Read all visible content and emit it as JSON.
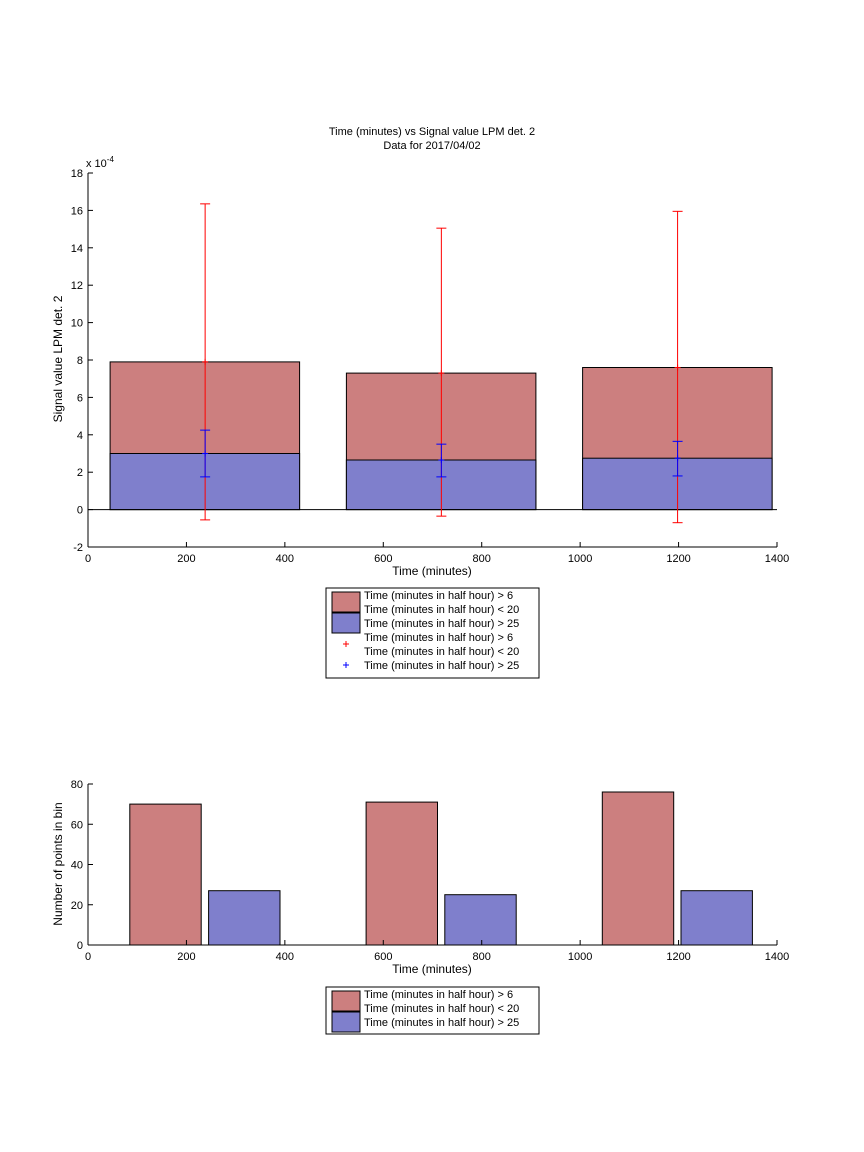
{
  "colors": {
    "red_fill": "#cc7f7f",
    "blue_fill": "#7f7fcc",
    "red_err": "#ff0000",
    "blue_err": "#0000ff"
  },
  "chart_data": [
    {
      "type": "bar",
      "title": "Time (minutes) vs Signal value LPM det. 2",
      "subtitle": "Data for 2017/04/02",
      "xlabel": "Time (minutes)",
      "ylabel": "Signal value LPM det. 2",
      "yscale_label": "x 10",
      "yscale_exp": "-4",
      "xlim": [
        0,
        1400
      ],
      "ylim": [
        -2,
        18
      ],
      "xticks": [
        0,
        200,
        400,
        600,
        800,
        1000,
        1200,
        1400
      ],
      "yticks": [
        -2,
        0,
        2,
        4,
        6,
        8,
        10,
        12,
        14,
        16,
        18
      ],
      "bars": [
        {
          "x_start": 45,
          "x_end": 430,
          "value": 7.9,
          "series": 0
        },
        {
          "x_start": 525,
          "x_end": 910,
          "value": 7.3,
          "series": 0
        },
        {
          "x_start": 1005,
          "x_end": 1390,
          "value": 7.6,
          "series": 0
        },
        {
          "x_start": 45,
          "x_end": 430,
          "value": 3.0,
          "series": 1
        },
        {
          "x_start": 525,
          "x_end": 910,
          "value": 2.65,
          "series": 1
        },
        {
          "x_start": 1005,
          "x_end": 1390,
          "value": 2.75,
          "series": 1
        }
      ],
      "errorbars": [
        {
          "x": 238,
          "y": 7.9,
          "low": -0.55,
          "high": 16.35,
          "series": 0
        },
        {
          "x": 718,
          "y": 7.3,
          "low": -0.35,
          "high": 15.05,
          "series": 0
        },
        {
          "x": 1198,
          "y": 7.6,
          "low": -0.7,
          "high": 15.95,
          "series": 0
        },
        {
          "x": 238,
          "y": 3.0,
          "low": 1.75,
          "high": 4.25,
          "series": 1
        },
        {
          "x": 718,
          "y": 2.65,
          "low": 1.75,
          "high": 3.5,
          "series": 1
        },
        {
          "x": 1198,
          "y": 2.75,
          "low": 1.8,
          "high": 3.65,
          "series": 1
        }
      ],
      "legend": [
        {
          "kind": "patch",
          "series": 0,
          "lines": [
            "Time (minutes in half hour) > 6",
            "Time (minutes in half hour) < 20"
          ]
        },
        {
          "kind": "patch",
          "series": 1,
          "lines": [
            "Time (minutes in half hour) > 25"
          ]
        },
        {
          "kind": "marker",
          "series": 0,
          "lines": [
            "Time (minutes in half hour) > 6",
            "Time (minutes in half hour) < 20"
          ]
        },
        {
          "kind": "marker",
          "series": 1,
          "lines": [
            "Time (minutes in half hour) > 25"
          ]
        }
      ]
    },
    {
      "type": "bar",
      "title": "",
      "xlabel": "Time (minutes)",
      "ylabel": "Number of points in bin",
      "xlim": [
        0,
        1400
      ],
      "ylim": [
        0,
        80
      ],
      "xticks": [
        0,
        200,
        400,
        600,
        800,
        1000,
        1200,
        1400
      ],
      "yticks": [
        0,
        20,
        40,
        60,
        80
      ],
      "bars": [
        {
          "x_start": 85,
          "x_end": 230,
          "value": 70,
          "series": 0
        },
        {
          "x_start": 245,
          "x_end": 390,
          "value": 27,
          "series": 1
        },
        {
          "x_start": 565,
          "x_end": 710,
          "value": 71,
          "series": 0
        },
        {
          "x_start": 725,
          "x_end": 870,
          "value": 25,
          "series": 1
        },
        {
          "x_start": 1045,
          "x_end": 1190,
          "value": 76,
          "series": 0
        },
        {
          "x_start": 1205,
          "x_end": 1350,
          "value": 27,
          "series": 1
        }
      ],
      "legend": [
        {
          "kind": "patch",
          "series": 0,
          "lines": [
            "Time (minutes in half hour) > 6",
            "Time (minutes in half hour) < 20"
          ]
        },
        {
          "kind": "patch",
          "series": 1,
          "lines": [
            "Time (minutes in half hour) > 25"
          ]
        }
      ]
    }
  ]
}
